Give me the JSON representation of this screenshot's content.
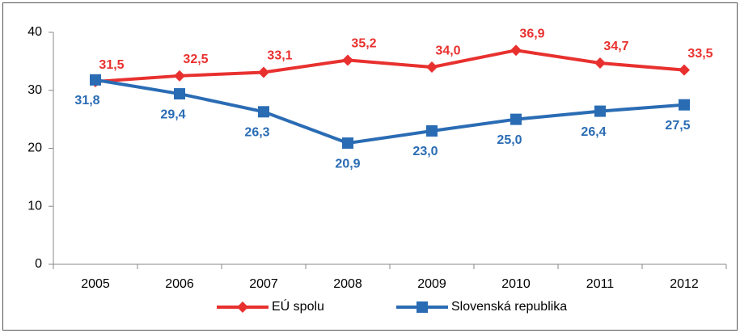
{
  "chart_data": {
    "type": "line",
    "categories": [
      "2005",
      "2006",
      "2007",
      "2008",
      "2009",
      "2010",
      "2011",
      "2012"
    ],
    "series": [
      {
        "name": "EÚ spolu",
        "color": "#e8312f",
        "marker": "diamond",
        "values": [
          31.5,
          32.5,
          33.1,
          35.2,
          34.0,
          36.9,
          34.7,
          33.5
        ],
        "value_labels": [
          "31,5",
          "32,5",
          "33,1",
          "35,2",
          "34,0",
          "36,9",
          "34,7",
          "33,5"
        ]
      },
      {
        "name": "Slovenská republika",
        "color": "#2a6cb4",
        "marker": "square",
        "values": [
          31.8,
          29.4,
          26.3,
          20.9,
          23.0,
          25.0,
          26.4,
          27.5
        ],
        "value_labels": [
          "31,8",
          "29,4",
          "26,3",
          "20,9",
          "23,0",
          "25,0",
          "26,4",
          "27,5"
        ]
      }
    ],
    "ylim": [
      0,
      40
    ],
    "yticks": [
      0,
      10,
      20,
      30,
      40
    ],
    "grid": false,
    "legend": "bottom"
  }
}
